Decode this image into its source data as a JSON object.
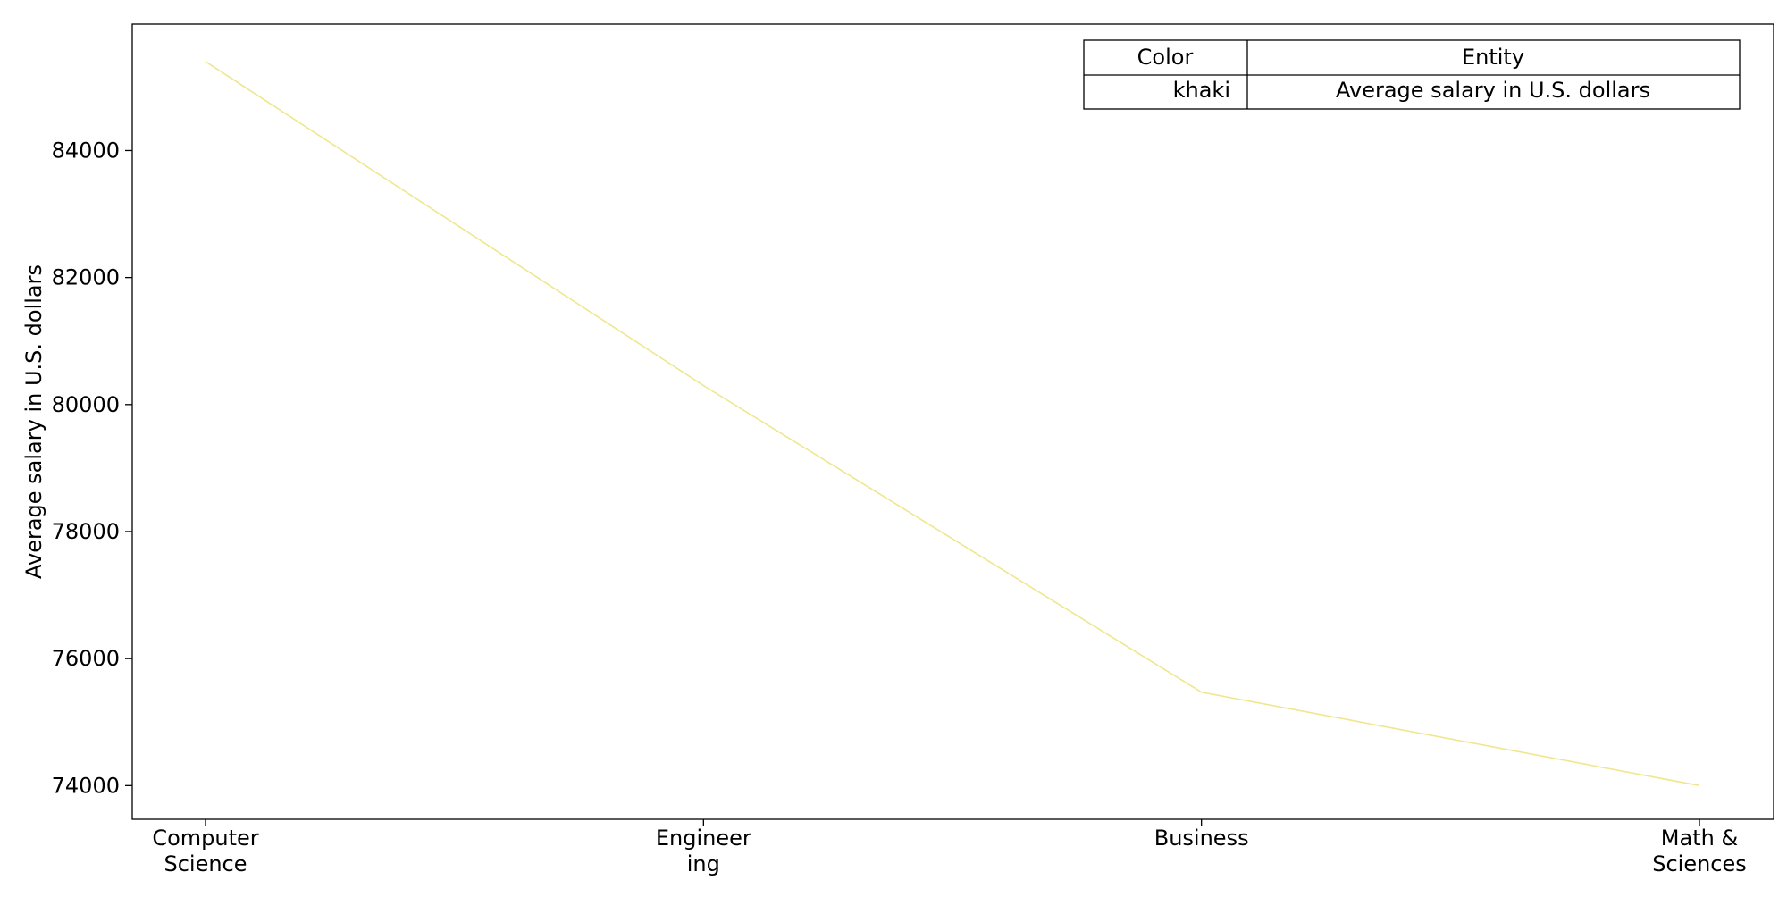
{
  "chart_data": {
    "type": "line",
    "title": "",
    "xlabel": "",
    "ylabel": "Average salary in U.S. dollars",
    "categories": [
      [
        "Computer",
        "Science"
      ],
      [
        "Engineer",
        "ing"
      ],
      [
        "Business"
      ],
      [
        "Math &",
        "Sciences"
      ]
    ],
    "series": [
      {
        "name": "Average salary in U.S. dollars",
        "values": [
          85400,
          80300,
          75470,
          74000
        ],
        "color": "#f0e68c"
      }
    ],
    "ylim": [
      73470,
      85990
    ],
    "yticks": [
      74000,
      76000,
      78000,
      80000,
      82000,
      84000
    ],
    "grid": false,
    "legend": {
      "placement": "top-right",
      "headers": [
        "Color",
        "Entity"
      ],
      "rows": [
        [
          "khaki",
          "Average salary in U.S. dollars"
        ]
      ]
    }
  }
}
